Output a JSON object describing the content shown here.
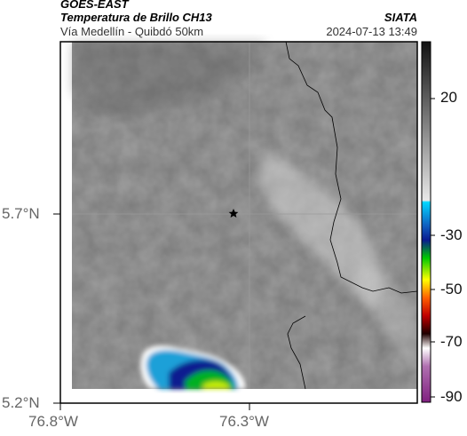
{
  "header": {
    "line1": "GOES-EAST",
    "line2": "Temperatura de Brillo CH13",
    "line3": "Vía Medellín - Quibdó 50km",
    "org": "SIATA",
    "timestamp": "2024-07-13 13:49"
  },
  "axes": {
    "lat_ticks": [
      "5.7°N",
      "5.2°N"
    ],
    "lon_ticks": [
      "76.8°W",
      "76.3°W"
    ]
  },
  "colorbar": {
    "ticks": [
      "20",
      "-30",
      "-50",
      "-70",
      "-90"
    ]
  },
  "marker": {
    "icon": "star-icon"
  },
  "colors": {
    "map_background": "#7c7c7c",
    "frame": "#000000",
    "tick_text": "#666666"
  }
}
